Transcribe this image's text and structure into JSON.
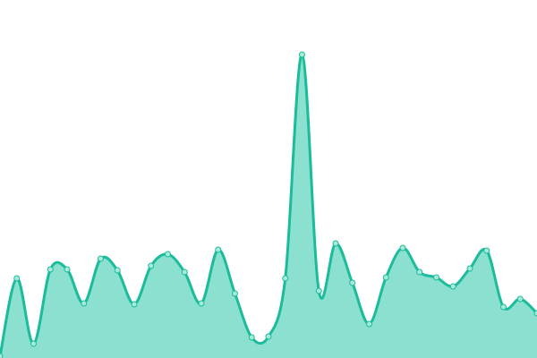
{
  "chart_data": {
    "type": "area",
    "title": "",
    "xlabel": "",
    "ylabel": "",
    "x": [
      0,
      1,
      2,
      3,
      4,
      5,
      6,
      7,
      8,
      9,
      10,
      11,
      12,
      13,
      14,
      15,
      16,
      17,
      18,
      19,
      20,
      21,
      22,
      23,
      24,
      25,
      26,
      27,
      28,
      29,
      30,
      31,
      32
    ],
    "values": [
      2,
      89,
      16,
      99,
      99,
      61,
      111,
      98,
      60,
      103,
      116,
      96,
      61,
      121,
      72,
      23,
      24,
      89,
      339,
      75,
      128,
      84,
      38,
      90,
      123,
      96,
      90,
      80,
      100,
      120,
      57,
      66,
      50
    ],
    "xlim": [
      0,
      32
    ],
    "ylim": [
      0,
      400
    ],
    "grid": false,
    "axes_visible": false,
    "curve": "smooth",
    "colors": {
      "line": "#1abc9c",
      "fill": "#8be0cf",
      "marker_fill": "#a8ead9"
    }
  }
}
